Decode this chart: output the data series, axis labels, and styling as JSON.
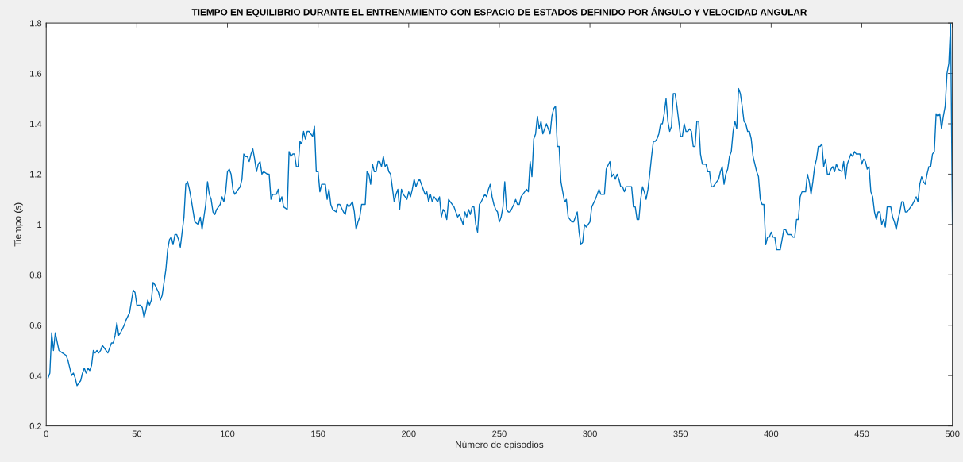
{
  "chart_data": {
    "type": "line",
    "title": "TIEMPO EN EQUILIBRIO DURANTE EL ENTRENAMIENTO CON ESPACIO DE ESTADOS DEFINIDO POR ÁNGULO Y VELOCIDAD ANGULAR",
    "xlabel": "Número de episodios",
    "ylabel": "Tiempo (s)",
    "x": [
      1,
      2,
      3,
      4,
      5,
      7,
      9,
      11,
      12,
      14,
      15,
      16,
      17,
      19,
      20,
      21,
      22,
      23,
      24,
      25,
      26,
      27,
      28,
      29,
      30,
      31,
      32,
      34,
      36,
      37,
      38,
      39,
      40,
      41,
      43,
      44,
      46,
      48,
      49,
      50,
      51,
      52,
      53,
      54,
      55,
      56,
      57,
      58,
      59,
      60,
      62,
      63,
      64,
      66,
      67,
      68,
      69,
      70,
      71,
      72,
      73,
      74,
      75,
      76,
      77,
      78,
      79,
      80,
      82,
      84,
      85,
      86,
      88,
      89,
      90,
      91,
      92,
      93,
      94,
      96,
      97,
      98,
      99,
      100,
      101,
      102,
      103,
      104,
      106,
      107,
      108,
      109,
      110,
      111,
      112,
      113,
      114,
      115,
      116,
      117,
      118,
      119,
      120,
      122,
      123,
      124,
      125,
      127,
      128,
      129,
      130,
      131,
      133,
      134,
      135,
      136,
      137,
      138,
      139,
      140,
      141,
      142,
      143,
      144,
      145,
      147,
      148,
      149,
      150,
      151,
      152,
      154,
      155,
      156,
      157,
      158,
      160,
      161,
      162,
      164,
      165,
      166,
      167,
      169,
      170,
      171,
      172,
      173,
      174,
      176,
      177,
      178,
      179,
      180,
      181,
      182,
      183,
      184,
      185,
      186,
      187,
      188,
      189,
      190,
      192,
      193,
      194,
      195,
      196,
      197,
      198,
      199,
      200,
      201,
      202,
      203,
      204,
      205,
      206,
      208,
      209,
      210,
      211,
      212,
      213,
      214,
      215,
      216,
      217,
      218,
      219,
      220,
      221,
      222,
      223,
      225,
      226,
      227,
      228,
      230,
      231,
      232,
      233,
      234,
      235,
      236,
      237,
      238,
      239,
      240,
      242,
      243,
      244,
      245,
      246,
      247,
      248,
      249,
      250,
      251,
      252,
      253,
      254,
      255,
      256,
      258,
      259,
      260,
      261,
      262,
      264,
      265,
      266,
      267,
      268,
      269,
      270,
      271,
      272,
      273,
      274,
      275,
      276,
      277,
      278,
      279,
      280,
      281,
      282,
      283,
      284,
      285,
      286,
      287,
      288,
      290,
      291,
      292,
      293,
      294,
      295,
      296,
      297,
      298,
      300,
      301,
      303,
      305,
      306,
      308,
      309,
      311,
      312,
      313,
      314,
      315,
      316,
      317,
      318,
      319,
      320,
      322,
      323,
      324,
      325,
      326,
      327,
      328,
      329,
      330,
      331,
      332,
      333,
      334,
      335,
      336,
      337,
      338,
      339,
      340,
      341,
      342,
      343,
      344,
      345,
      346,
      347,
      348,
      349,
      350,
      351,
      352,
      353,
      354,
      355,
      356,
      357,
      358,
      359,
      360,
      361,
      362,
      364,
      365,
      366,
      367,
      368,
      370,
      371,
      372,
      373,
      374,
      375,
      376,
      377,
      378,
      379,
      380,
      381,
      382,
      383,
      384,
      385,
      386,
      387,
      388,
      389,
      390,
      392,
      393,
      394,
      395,
      396,
      397,
      398,
      399,
      400,
      401,
      402,
      403,
      404,
      405,
      406,
      407,
      408,
      409,
      410,
      411,
      412,
      413,
      414,
      415,
      416,
      417,
      418,
      419,
      420,
      421,
      422,
      423,
      424,
      425,
      426,
      427,
      428,
      429,
      430,
      431,
      432,
      433,
      434,
      435,
      436,
      437,
      439,
      440,
      441,
      442,
      443,
      444,
      445,
      446,
      447,
      449,
      450,
      451,
      452,
      453,
      454,
      455,
      456,
      457,
      458,
      459,
      460,
      461,
      462,
      463,
      464,
      466,
      467,
      468,
      469,
      470,
      471,
      472,
      473,
      474,
      475,
      476,
      477,
      478,
      480,
      481,
      482,
      483,
      484,
      485,
      486,
      487,
      488,
      489,
      490,
      491,
      492,
      493,
      494,
      495,
      496,
      497,
      498,
      499,
      500
    ],
    "series": [
      {
        "color": "#0072bd",
        "values": [
          0.39,
          0.41,
          0.57,
          0.5,
          0.57,
          0.5,
          0.49,
          0.48,
          0.46,
          0.4,
          0.41,
          0.39,
          0.36,
          0.38,
          0.41,
          0.43,
          0.41,
          0.43,
          0.42,
          0.44,
          0.5,
          0.49,
          0.5,
          0.49,
          0.5,
          0.52,
          0.51,
          0.49,
          0.53,
          0.53,
          0.56,
          0.61,
          0.56,
          0.57,
          0.6,
          0.62,
          0.65,
          0.74,
          0.73,
          0.68,
          0.68,
          0.68,
          0.67,
          0.63,
          0.66,
          0.7,
          0.68,
          0.7,
          0.77,
          0.76,
          0.73,
          0.7,
          0.72,
          0.82,
          0.9,
          0.94,
          0.95,
          0.92,
          0.96,
          0.96,
          0.94,
          0.91,
          0.97,
          1.03,
          1.16,
          1.17,
          1.14,
          1.1,
          1.01,
          1.0,
          1.03,
          0.98,
          1.08,
          1.17,
          1.12,
          1.1,
          1.05,
          1.04,
          1.06,
          1.08,
          1.11,
          1.09,
          1.13,
          1.21,
          1.22,
          1.2,
          1.14,
          1.12,
          1.14,
          1.15,
          1.18,
          1.28,
          1.27,
          1.27,
          1.25,
          1.28,
          1.3,
          1.26,
          1.21,
          1.24,
          1.25,
          1.2,
          1.21,
          1.2,
          1.2,
          1.1,
          1.12,
          1.12,
          1.14,
          1.09,
          1.11,
          1.07,
          1.06,
          1.29,
          1.27,
          1.28,
          1.28,
          1.23,
          1.23,
          1.33,
          1.32,
          1.37,
          1.34,
          1.37,
          1.37,
          1.35,
          1.39,
          1.21,
          1.21,
          1.13,
          1.16,
          1.16,
          1.1,
          1.14,
          1.08,
          1.06,
          1.05,
          1.08,
          1.08,
          1.05,
          1.04,
          1.08,
          1.07,
          1.09,
          1.05,
          0.98,
          1.01,
          1.03,
          1.08,
          1.08,
          1.21,
          1.2,
          1.16,
          1.24,
          1.21,
          1.21,
          1.25,
          1.25,
          1.23,
          1.27,
          1.23,
          1.24,
          1.21,
          1.2,
          1.09,
          1.12,
          1.14,
          1.06,
          1.14,
          1.12,
          1.11,
          1.1,
          1.13,
          1.11,
          1.14,
          1.18,
          1.15,
          1.17,
          1.18,
          1.14,
          1.12,
          1.13,
          1.09,
          1.12,
          1.09,
          1.11,
          1.1,
          1.09,
          1.11,
          1.03,
          1.06,
          1.05,
          1.02,
          1.1,
          1.09,
          1.07,
          1.05,
          1.03,
          1.04,
          1.0,
          1.05,
          1.03,
          1.06,
          1.04,
          1.07,
          1.07,
          1.0,
          0.97,
          1.08,
          1.09,
          1.12,
          1.11,
          1.14,
          1.16,
          1.11,
          1.08,
          1.06,
          1.05,
          1.01,
          1.03,
          1.07,
          1.17,
          1.06,
          1.05,
          1.05,
          1.08,
          1.1,
          1.08,
          1.08,
          1.11,
          1.13,
          1.14,
          1.13,
          1.25,
          1.19,
          1.34,
          1.36,
          1.43,
          1.38,
          1.41,
          1.36,
          1.38,
          1.4,
          1.38,
          1.36,
          1.43,
          1.46,
          1.47,
          1.31,
          1.31,
          1.17,
          1.13,
          1.09,
          1.1,
          1.03,
          1.01,
          1.01,
          1.03,
          1.05,
          0.97,
          0.92,
          0.93,
          1.0,
          0.99,
          1.01,
          1.07,
          1.1,
          1.14,
          1.12,
          1.12,
          1.22,
          1.25,
          1.19,
          1.2,
          1.18,
          1.2,
          1.18,
          1.15,
          1.15,
          1.13,
          1.15,
          1.15,
          1.15,
          1.07,
          1.07,
          1.02,
          1.02,
          1.1,
          1.15,
          1.13,
          1.1,
          1.14,
          1.2,
          1.27,
          1.33,
          1.33,
          1.34,
          1.36,
          1.4,
          1.4,
          1.44,
          1.5,
          1.41,
          1.37,
          1.39,
          1.52,
          1.52,
          1.47,
          1.41,
          1.35,
          1.35,
          1.4,
          1.37,
          1.37,
          1.38,
          1.37,
          1.31,
          1.31,
          1.41,
          1.41,
          1.28,
          1.24,
          1.24,
          1.21,
          1.21,
          1.15,
          1.15,
          1.17,
          1.18,
          1.21,
          1.23,
          1.16,
          1.2,
          1.22,
          1.27,
          1.29,
          1.37,
          1.41,
          1.38,
          1.54,
          1.52,
          1.47,
          1.41,
          1.4,
          1.37,
          1.37,
          1.34,
          1.27,
          1.21,
          1.19,
          1.1,
          1.08,
          1.08,
          0.92,
          0.95,
          0.95,
          0.97,
          0.95,
          0.95,
          0.9,
          0.9,
          0.9,
          0.94,
          0.98,
          0.98,
          0.96,
          0.96,
          0.96,
          0.95,
          0.95,
          1.02,
          1.02,
          1.11,
          1.13,
          1.13,
          1.13,
          1.2,
          1.17,
          1.12,
          1.17,
          1.23,
          1.26,
          1.31,
          1.31,
          1.32,
          1.23,
          1.26,
          1.2,
          1.2,
          1.22,
          1.23,
          1.21,
          1.24,
          1.22,
          1.21,
          1.25,
          1.18,
          1.24,
          1.26,
          1.28,
          1.27,
          1.29,
          1.28,
          1.28,
          1.24,
          1.26,
          1.25,
          1.22,
          1.23,
          1.13,
          1.11,
          1.05,
          1.02,
          1.05,
          1.05,
          1.0,
          1.02,
          0.99,
          1.07,
          1.07,
          1.03,
          1.01,
          0.98,
          1.02,
          1.05,
          1.09,
          1.09,
          1.05,
          1.05,
          1.06,
          1.07,
          1.08,
          1.11,
          1.09,
          1.16,
          1.19,
          1.17,
          1.16,
          1.2,
          1.23,
          1.23,
          1.28,
          1.29,
          1.44,
          1.43,
          1.44,
          1.38,
          1.43,
          1.47,
          1.6,
          1.64,
          1.8,
          1.0
        ]
      }
    ],
    "xlim": [
      0,
      500
    ],
    "ylim": [
      0.2,
      1.8
    ],
    "xticks": [
      0,
      50,
      100,
      150,
      200,
      250,
      300,
      350,
      400,
      450,
      500
    ],
    "yticks": [
      0.2,
      0.4,
      0.6,
      0.8,
      1,
      1.2,
      1.4,
      1.6,
      1.8
    ]
  }
}
